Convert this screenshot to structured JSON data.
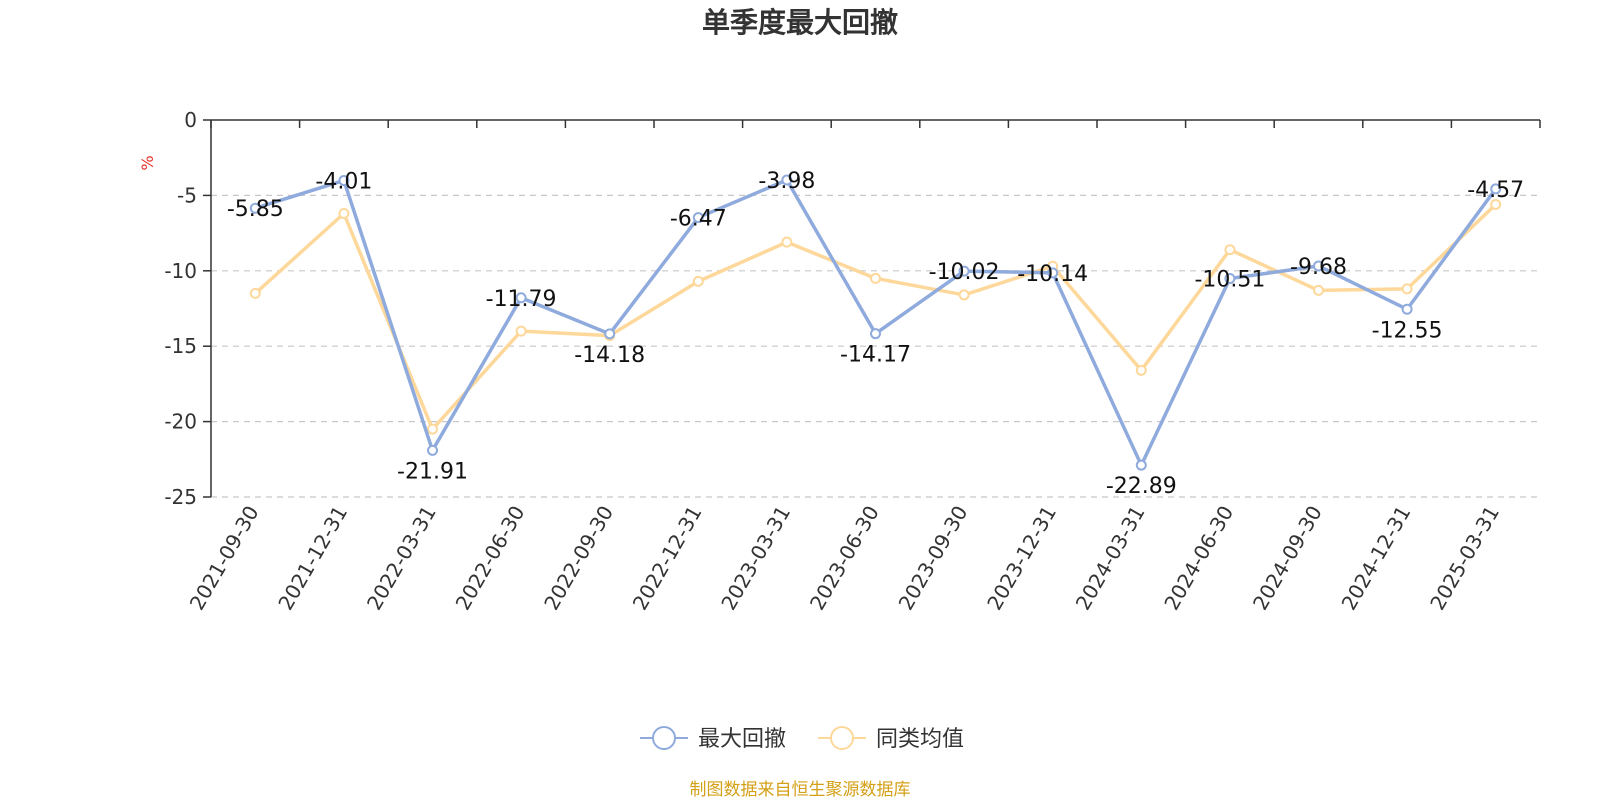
{
  "chart_data": {
    "type": "line",
    "title": "单季度最大回撤",
    "ylabel": "%",
    "ylim": [
      -25,
      0
    ],
    "yticks": [
      0,
      -5,
      -10,
      -15,
      -20,
      -25
    ],
    "grid": true,
    "legend_position": "bottom",
    "categories": [
      "2021-09-30",
      "2021-12-31",
      "2022-03-31",
      "2022-06-30",
      "2022-09-30",
      "2022-12-31",
      "2023-03-31",
      "2023-06-30",
      "2023-09-30",
      "2023-12-31",
      "2024-03-31",
      "2024-06-30",
      "2024-09-30",
      "2024-12-31",
      "2025-03-31"
    ],
    "series": [
      {
        "name": "最大回撤",
        "color": "#8faadc",
        "show_labels": true,
        "values": [
          -5.85,
          -4.01,
          -21.91,
          -11.79,
          -14.18,
          -6.47,
          -3.98,
          -14.17,
          -10.02,
          -10.14,
          -22.89,
          -10.51,
          -9.68,
          -12.55,
          -4.57
        ]
      },
      {
        "name": "同类均值",
        "color": "#fdd89a",
        "show_labels": false,
        "values": [
          -11.5,
          -6.2,
          -20.5,
          -14.0,
          -14.3,
          -10.7,
          -8.1,
          -10.5,
          -11.6,
          -9.7,
          -16.6,
          -8.6,
          -11.3,
          -11.2,
          -5.6
        ]
      }
    ]
  },
  "colors": {
    "unit_label": "#e8302a",
    "source": "#d4a017",
    "axis": "#333333",
    "grid": "#c8c8c8"
  },
  "source_text": "制图数据来自恒生聚源数据库"
}
